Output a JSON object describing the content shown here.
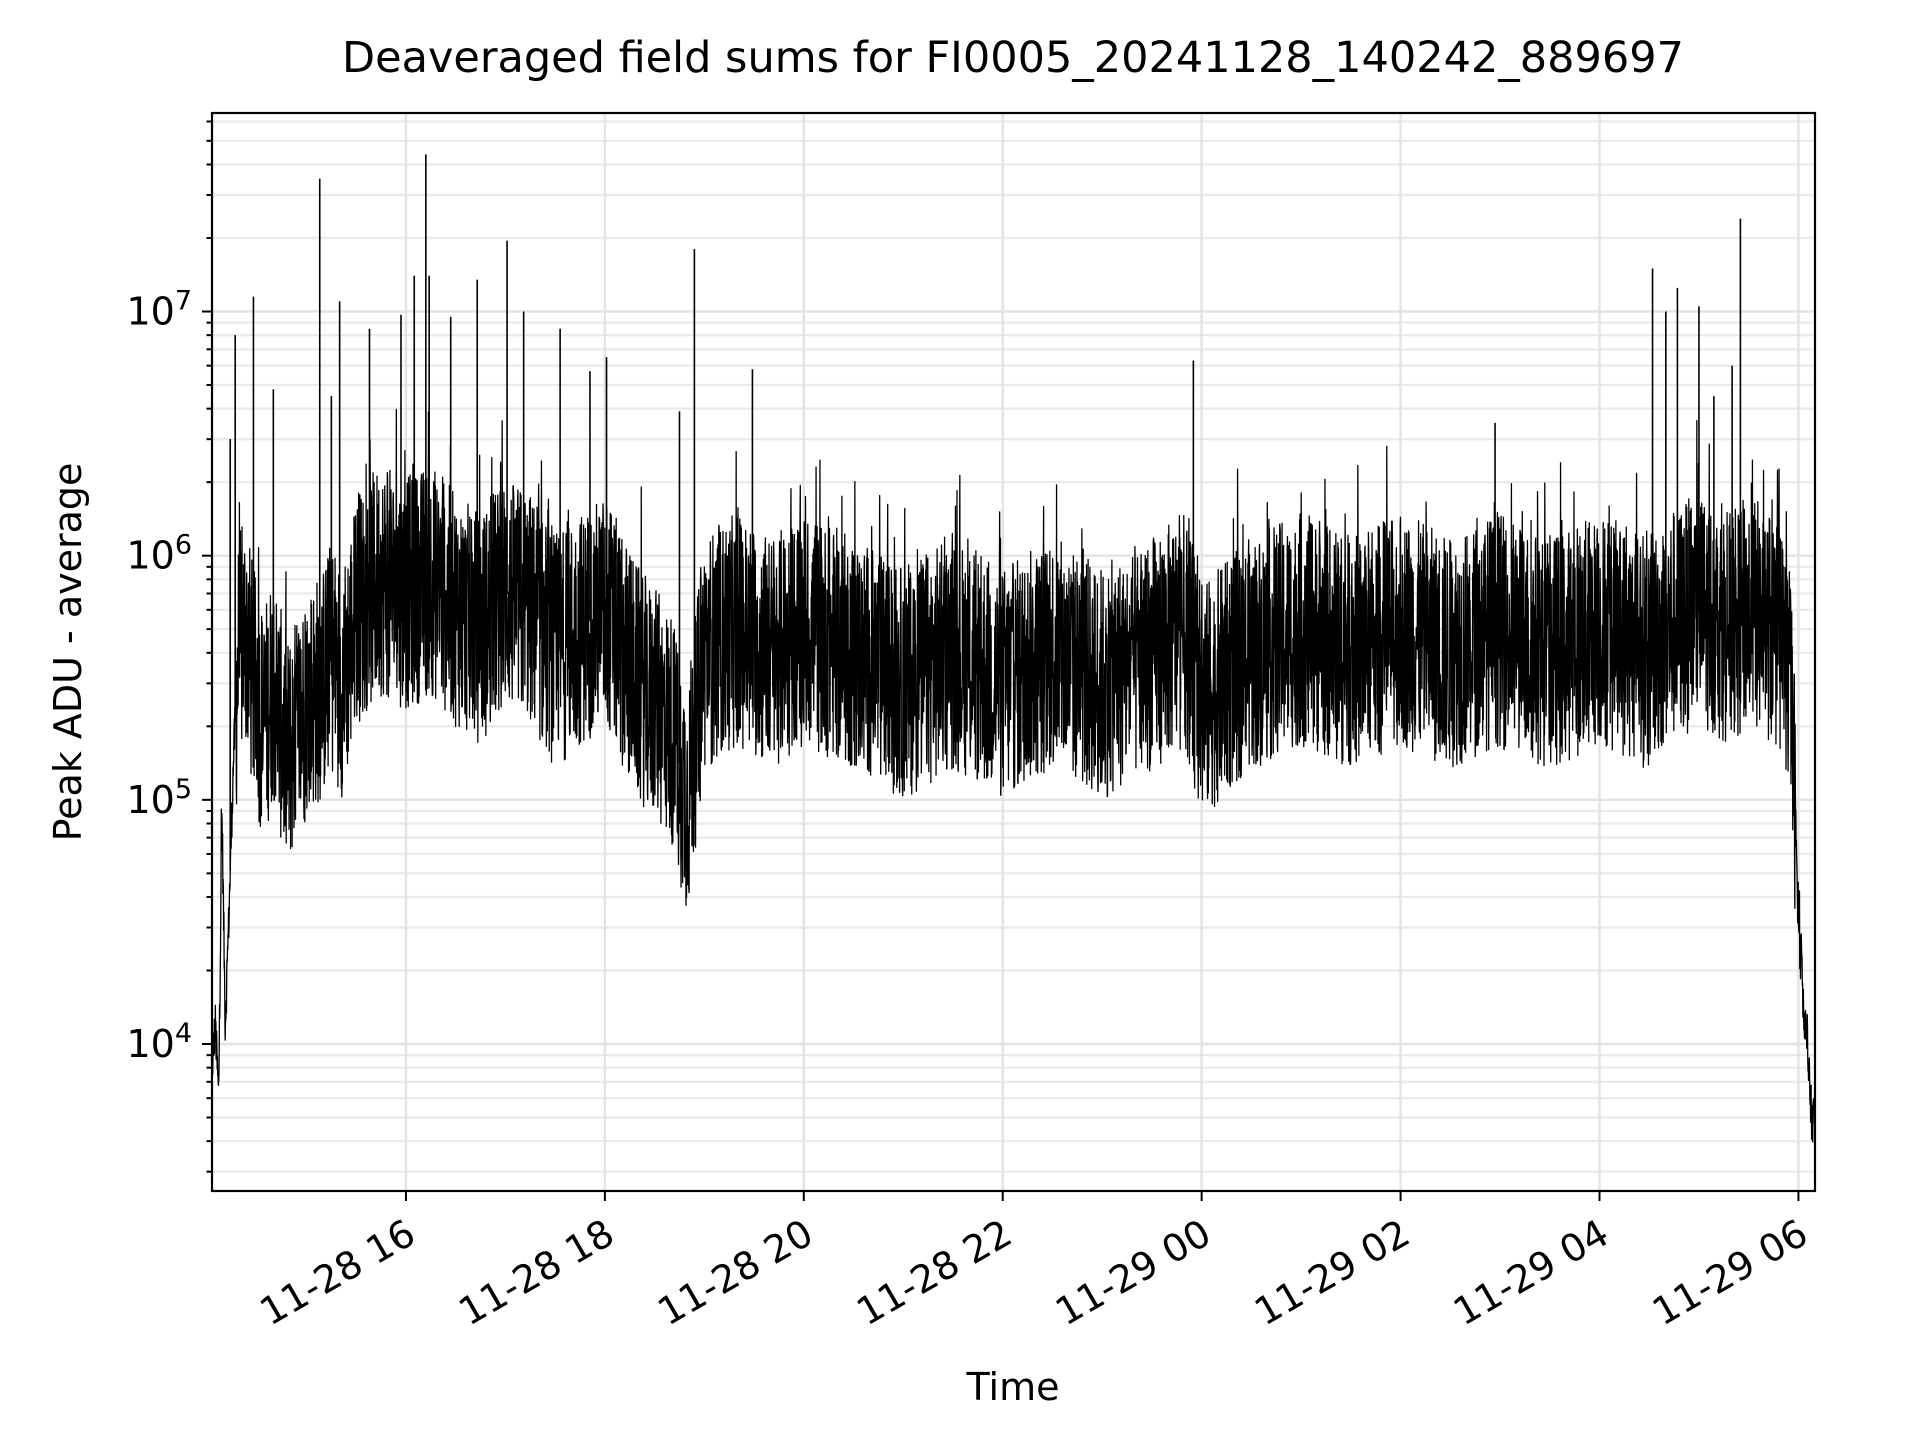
{
  "chart_data": {
    "type": "line",
    "title": "Deaveraged field sums for FI0005_20241128_140242_889697",
    "xlabel": "Time",
    "ylabel": "Peak ADU - average",
    "yscale": "log",
    "ylim": [
      2500,
      65000000
    ],
    "xlim": [
      "2024-11-28 14:03",
      "2024-11-29 06:10"
    ],
    "grid": true,
    "line_color": "#000000",
    "x_ticks": [
      {
        "value": "2024-11-28 16:00",
        "label": "11-28 16"
      },
      {
        "value": "2024-11-28 18:00",
        "label": "11-28 18"
      },
      {
        "value": "2024-11-28 20:00",
        "label": "11-28 20"
      },
      {
        "value": "2024-11-28 22:00",
        "label": "11-28 22"
      },
      {
        "value": "2024-11-29 00:00",
        "label": "11-29 00"
      },
      {
        "value": "2024-11-29 02:00",
        "label": "11-29 02"
      },
      {
        "value": "2024-11-29 04:00",
        "label": "11-29 04"
      },
      {
        "value": "2024-11-29 06:00",
        "label": "11-29 06"
      }
    ],
    "y_ticks": [
      {
        "value": 10000,
        "base": "10",
        "exp": "4"
      },
      {
        "value": 100000,
        "base": "10",
        "exp": "5"
      },
      {
        "value": 1000000,
        "base": "10",
        "exp": "6"
      },
      {
        "value": 10000000,
        "base": "10",
        "exp": "7"
      }
    ],
    "series": [
      {
        "x": [
          "2024-11-28 14:03",
          "2024-11-28 14:05",
          "2024-11-28 14:07",
          "2024-11-28 14:09",
          "2024-11-28 14:11",
          "2024-11-28 14:13",
          "2024-11-28 14:16",
          "2024-11-28 14:19",
          "2024-11-28 14:23",
          "2024-11-28 14:28",
          "2024-11-28 14:34",
          "2024-11-28 14:40",
          "2024-11-28 14:48",
          "2024-11-28 14:55",
          "2024-11-28 15:00",
          "2024-11-28 15:10",
          "2024-11-28 15:15",
          "2024-11-28 15:22",
          "2024-11-28 15:30",
          "2024-11-28 15:45",
          "2024-11-28 16:00",
          "2024-11-28 16:15",
          "2024-11-28 16:30",
          "2024-11-28 16:45",
          "2024-11-28 17:00",
          "2024-11-28 17:15",
          "2024-11-28 17:30",
          "2024-11-28 17:45",
          "2024-11-28 18:00",
          "2024-11-28 18:20",
          "2024-11-28 18:40",
          "2024-11-28 18:50",
          "2024-11-28 19:00",
          "2024-11-28 19:20",
          "2024-11-28 19:40",
          "2024-11-28 20:00",
          "2024-11-28 20:30",
          "2024-11-28 21:00",
          "2024-11-28 21:30",
          "2024-11-28 22:00",
          "2024-11-28 22:30",
          "2024-11-28 23:00",
          "2024-11-28 23:30",
          "2024-11-28 23:50",
          "2024-11-29 00:00",
          "2024-11-29 00:30",
          "2024-11-29 01:00",
          "2024-11-29 01:30",
          "2024-11-29 02:00",
          "2024-11-29 02:30",
          "2024-11-29 02:57",
          "2024-11-29 03:30",
          "2024-11-29 04:00",
          "2024-11-29 04:30",
          "2024-11-29 04:40",
          "2024-11-29 05:00",
          "2024-11-29 05:20",
          "2024-11-29 05:30",
          "2024-11-29 05:45",
          "2024-11-29 05:52",
          "2024-11-29 05:55",
          "2024-11-29 05:58",
          "2024-11-29 06:00",
          "2024-11-29 06:03",
          "2024-11-29 06:06",
          "2024-11-29 06:08",
          "2024-11-29 06:10"
        ],
        "y": [
          8000,
          12000,
          6000,
          90000,
          12000,
          30000,
          150000,
          400000,
          500000,
          300000,
          200000,
          300000,
          150000,
          200000,
          250000,
          300000,
          400000,
          300000,
          600000,
          800000,
          700000,
          800000,
          600000,
          500000,
          700000,
          600000,
          400000,
          500000,
          600000,
          300000,
          200000,
          100000,
          400000,
          500000,
          400000,
          500000,
          400000,
          300000,
          400000,
          300000,
          400000,
          300000,
          400000,
          500000,
          250000,
          400000,
          500000,
          400000,
          500000,
          400000,
          500000,
          400000,
          500000,
          400000,
          500000,
          600000,
          500000,
          600000,
          500000,
          400000,
          300000,
          100000,
          30000,
          15000,
          8000,
          5000,
          5000
        ]
      }
    ],
    "spikes": [
      {
        "x": "2024-11-28 14:14",
        "y": 3000000
      },
      {
        "x": "2024-11-28 14:17",
        "y": 8000000
      },
      {
        "x": "2024-11-28 14:28",
        "y": 11500000
      },
      {
        "x": "2024-11-28 14:40",
        "y": 4800000
      },
      {
        "x": "2024-11-28 15:08",
        "y": 35000000
      },
      {
        "x": "2024-11-28 15:15",
        "y": 4500000
      },
      {
        "x": "2024-11-28 15:20",
        "y": 11000000
      },
      {
        "x": "2024-11-28 15:38",
        "y": 8500000
      },
      {
        "x": "2024-11-28 15:57",
        "y": 9700000
      },
      {
        "x": "2024-11-28 16:05",
        "y": 14000000
      },
      {
        "x": "2024-11-28 16:12",
        "y": 44000000
      },
      {
        "x": "2024-11-28 16:14",
        "y": 14000000
      },
      {
        "x": "2024-11-28 16:27",
        "y": 9500000
      },
      {
        "x": "2024-11-28 16:43",
        "y": 13500000
      },
      {
        "x": "2024-11-28 17:01",
        "y": 19500000
      },
      {
        "x": "2024-11-28 17:11",
        "y": 10000000
      },
      {
        "x": "2024-11-28 17:33",
        "y": 8500000
      },
      {
        "x": "2024-11-28 17:51",
        "y": 5700000
      },
      {
        "x": "2024-11-28 18:01",
        "y": 6500000
      },
      {
        "x": "2024-11-28 18:45",
        "y": 3900000
      },
      {
        "x": "2024-11-28 18:54",
        "y": 18000000
      },
      {
        "x": "2024-11-28 19:29",
        "y": 5800000
      },
      {
        "x": "2024-11-28 23:55",
        "y": 6300000
      },
      {
        "x": "2024-11-29 02:57",
        "y": 3500000
      },
      {
        "x": "2024-11-29 04:32",
        "y": 15000000
      },
      {
        "x": "2024-11-29 04:40",
        "y": 10000000
      },
      {
        "x": "2024-11-29 04:47",
        "y": 12500000
      },
      {
        "x": "2024-11-29 05:00",
        "y": 10500000
      },
      {
        "x": "2024-11-29 05:09",
        "y": 4500000
      },
      {
        "x": "2024-11-29 05:20",
        "y": 6000000
      },
      {
        "x": "2024-11-29 05:25",
        "y": 24000000
      }
    ]
  }
}
